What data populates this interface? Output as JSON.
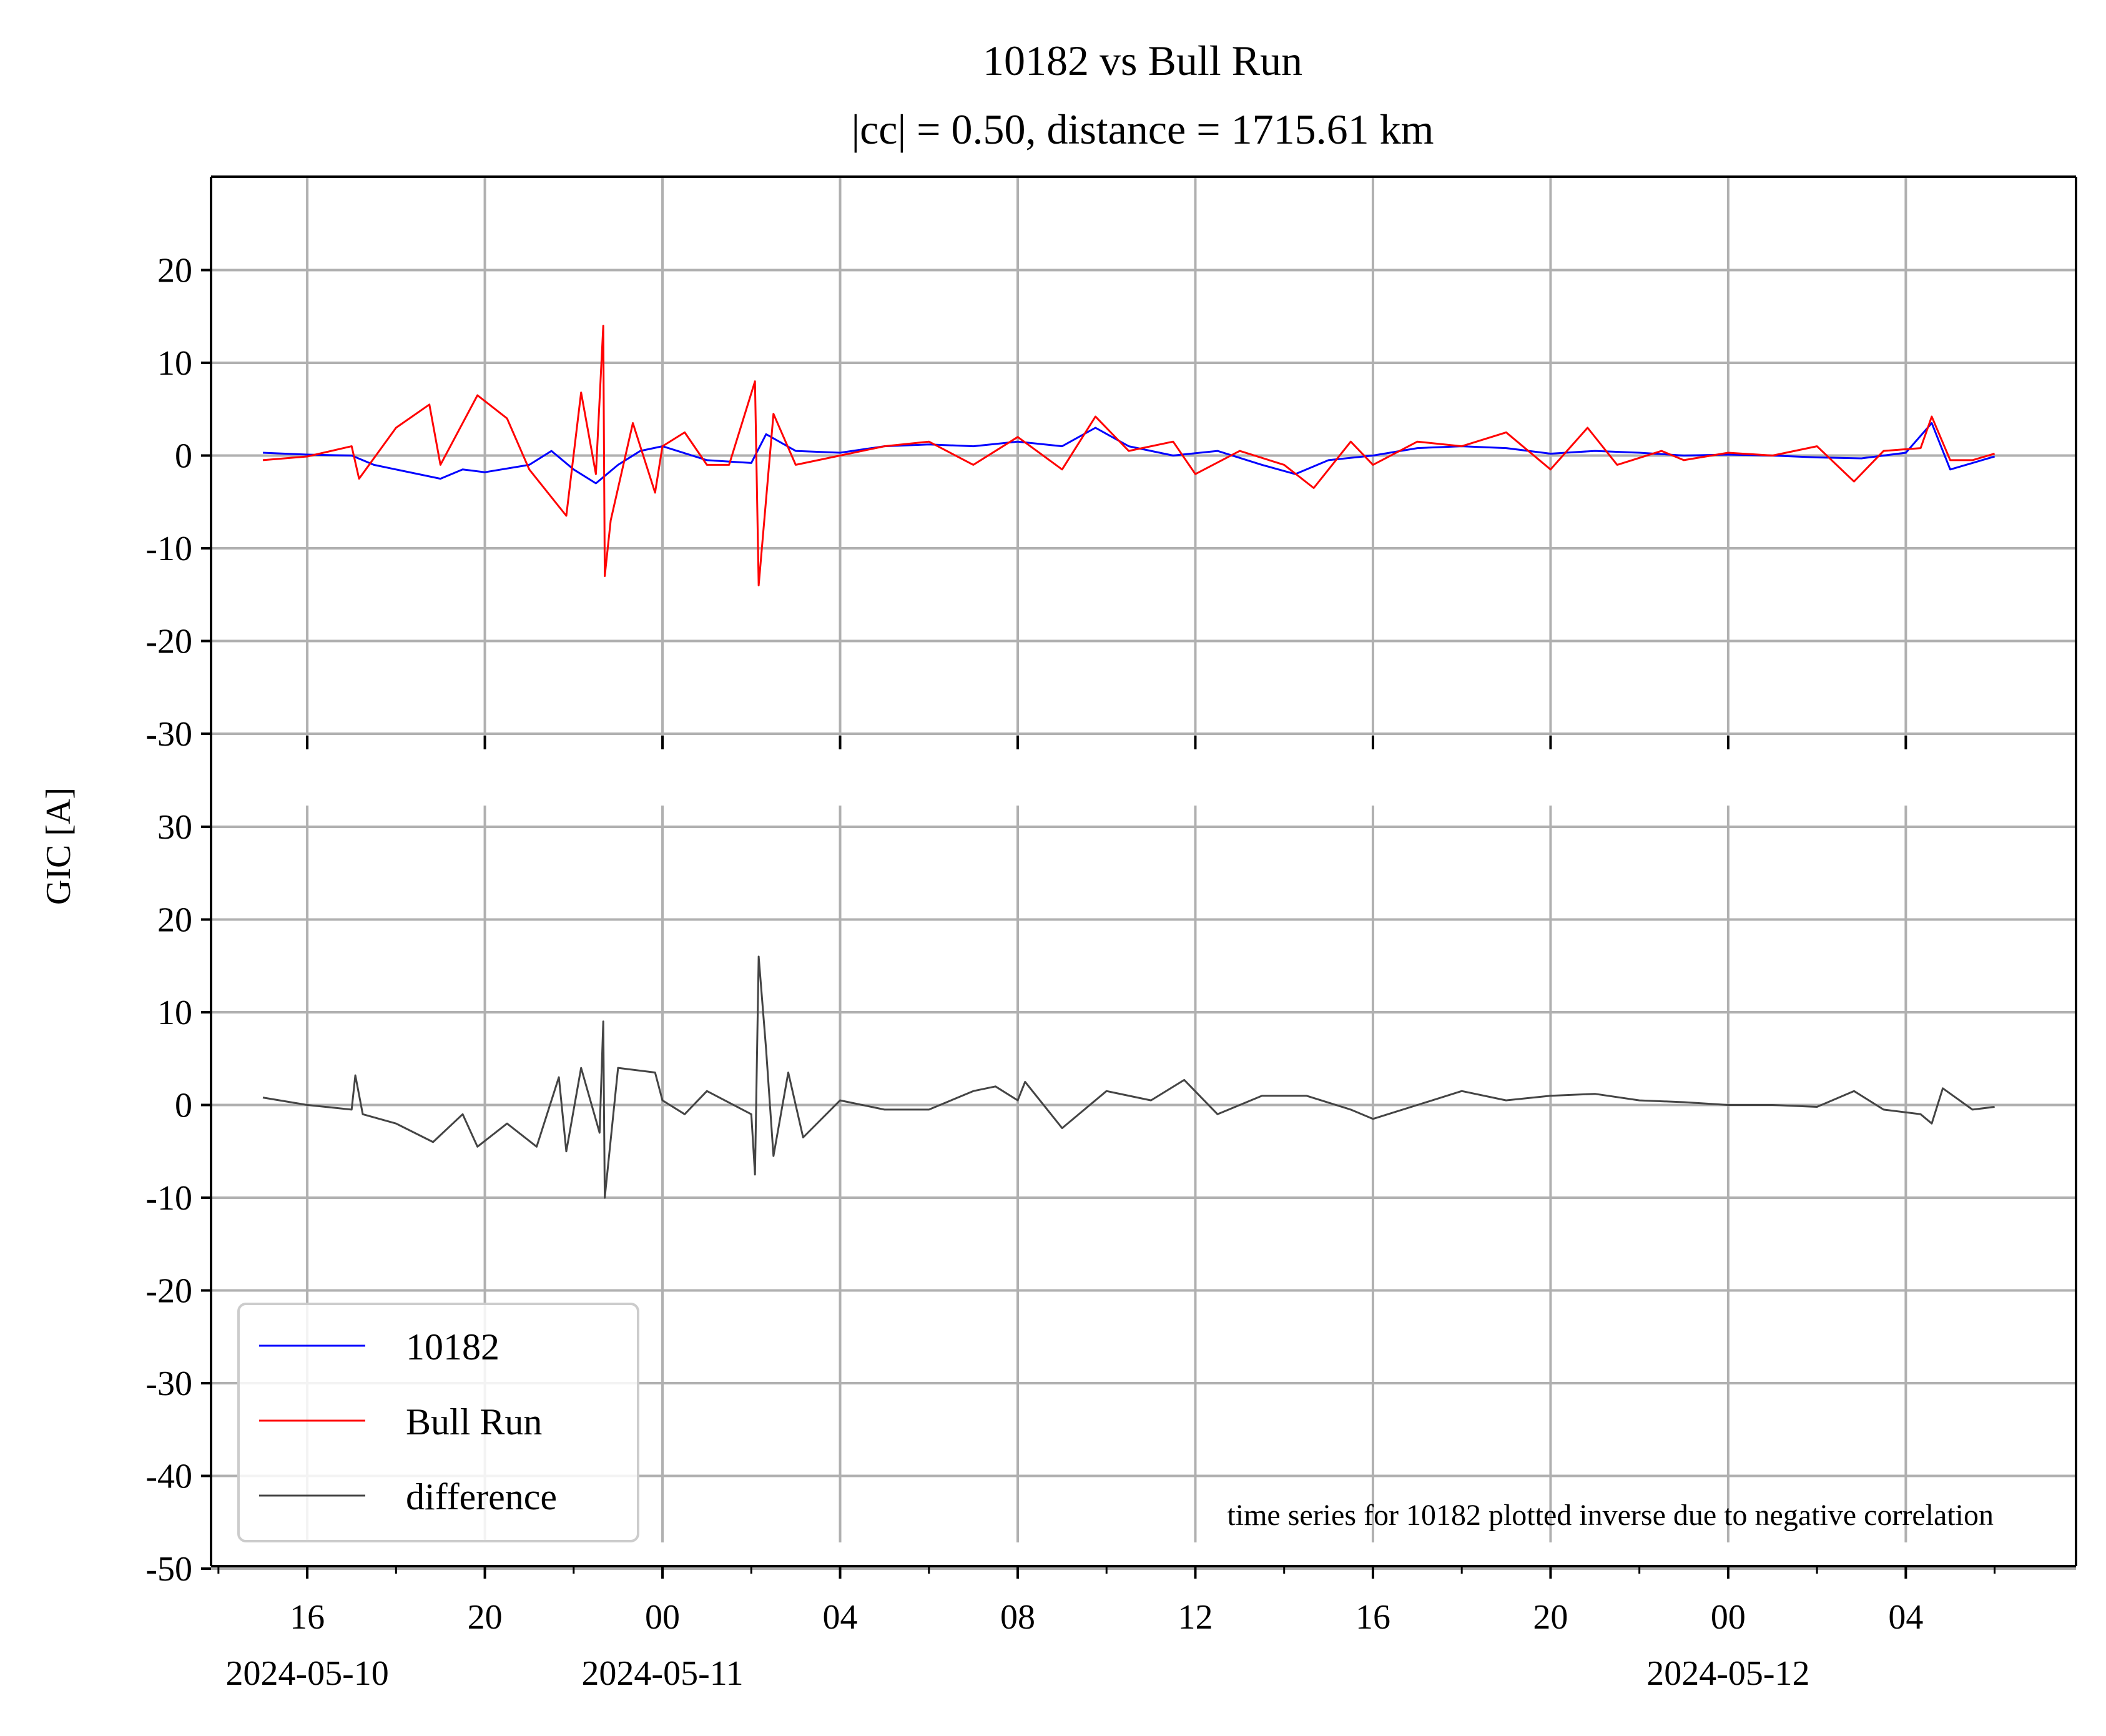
{
  "chart_data": {
    "type": "line",
    "title": "10182 vs Bull Run",
    "subtitle": "|cc| = 0.50, distance = 1715.61 km",
    "ylabel": "GIC [A]",
    "annotation": "time series for 10182 plotted inverse due to negative correlation",
    "grid": true,
    "legend": {
      "placement": "lower-left",
      "entries": [
        {
          "label": "10182",
          "color": "#0000ff"
        },
        {
          "label": "Bull Run",
          "color": "#ff0000"
        },
        {
          "label": "difference",
          "color": "#444444"
        }
      ]
    },
    "x_axis": {
      "range": [
        "2024-05-10T13:50",
        "2024-05-12T07:50"
      ],
      "data_range": [
        "2024-05-10T15:00",
        "2024-05-12T06:00"
      ],
      "major_ticks": [
        {
          "time": "2024-05-10T16:00",
          "label": "16",
          "date": "2024-05-10"
        },
        {
          "time": "2024-05-10T20:00",
          "label": "20",
          "date": ""
        },
        {
          "time": "2024-05-11T00:00",
          "label": "00",
          "date": "2024-05-11"
        },
        {
          "time": "2024-05-11T04:00",
          "label": "04",
          "date": ""
        },
        {
          "time": "2024-05-11T08:00",
          "label": "08",
          "date": ""
        },
        {
          "time": "2024-05-11T12:00",
          "label": "12",
          "date": ""
        },
        {
          "time": "2024-05-11T16:00",
          "label": "16",
          "date": ""
        },
        {
          "time": "2024-05-11T20:00",
          "label": "20",
          "date": ""
        },
        {
          "time": "2024-05-12T00:00",
          "label": "00",
          "date": "2024-05-12"
        },
        {
          "time": "2024-05-12T04:00",
          "label": "04",
          "date": ""
        }
      ]
    },
    "panels": [
      {
        "name": "top",
        "ylim": [
          -30,
          30
        ],
        "yticks": [
          -30,
          -20,
          -10,
          0,
          10,
          20
        ],
        "ytick_labels": [
          "-30",
          "-20",
          "-10",
          "0",
          "10",
          "20"
        ],
        "series": [
          {
            "name": "10182",
            "color": "#0000ff",
            "points": [
              [
                "2024-05-10T15:00",
                0.3
              ],
              [
                "2024-05-10T16:00",
                0.1
              ],
              [
                "2024-05-10T17:00",
                0.0
              ],
              [
                "2024-05-10T17:30",
                -1.0
              ],
              [
                "2024-05-10T18:00",
                -1.5
              ],
              [
                "2024-05-10T19:00",
                -2.5
              ],
              [
                "2024-05-10T19:30",
                -1.5
              ],
              [
                "2024-05-10T20:00",
                -1.8
              ],
              [
                "2024-05-10T21:00",
                -1.0
              ],
              [
                "2024-05-10T21:30",
                0.5
              ],
              [
                "2024-05-10T22:00",
                -1.5
              ],
              [
                "2024-05-10T22:30",
                -3.0
              ],
              [
                "2024-05-10T23:00",
                -1.0
              ],
              [
                "2024-05-10T23:30",
                0.5
              ],
              [
                "2024-05-11T00:00",
                1.0
              ],
              [
                "2024-05-11T01:00",
                -0.5
              ],
              [
                "2024-05-11T02:00",
                -0.8
              ],
              [
                "2024-05-11T02:20",
                2.3
              ],
              [
                "2024-05-11T03:00",
                0.5
              ],
              [
                "2024-05-11T04:00",
                0.3
              ],
              [
                "2024-05-11T05:00",
                1.0
              ],
              [
                "2024-05-11T06:00",
                1.2
              ],
              [
                "2024-05-11T07:00",
                1.0
              ],
              [
                "2024-05-11T08:00",
                1.5
              ],
              [
                "2024-05-11T09:00",
                1.0
              ],
              [
                "2024-05-11T09:45",
                3.0
              ],
              [
                "2024-05-11T10:30",
                1.0
              ],
              [
                "2024-05-11T11:30",
                0.0
              ],
              [
                "2024-05-11T12:30",
                0.5
              ],
              [
                "2024-05-11T13:30",
                -1.0
              ],
              [
                "2024-05-11T14:15",
                -2.0
              ],
              [
                "2024-05-11T15:00",
                -0.5
              ],
              [
                "2024-05-11T16:00",
                0.0
              ],
              [
                "2024-05-11T17:00",
                0.8
              ],
              [
                "2024-05-11T18:00",
                1.0
              ],
              [
                "2024-05-11T19:00",
                0.8
              ],
              [
                "2024-05-11T20:00",
                0.2
              ],
              [
                "2024-05-11T21:00",
                0.5
              ],
              [
                "2024-05-11T22:00",
                0.3
              ],
              [
                "2024-05-11T23:00",
                0.0
              ],
              [
                "2024-05-12T00:00",
                0.1
              ],
              [
                "2024-05-12T01:00",
                0.0
              ],
              [
                "2024-05-12T02:00",
                -0.2
              ],
              [
                "2024-05-12T03:00",
                -0.3
              ],
              [
                "2024-05-12T04:00",
                0.3
              ],
              [
                "2024-05-12T04:35",
                3.5
              ],
              [
                "2024-05-12T05:00",
                -1.5
              ],
              [
                "2024-05-12T05:30",
                -0.8
              ],
              [
                "2024-05-12T06:00",
                -0.1
              ]
            ]
          },
          {
            "name": "Bull Run",
            "color": "#ff0000",
            "points": [
              [
                "2024-05-10T15:00",
                -0.5
              ],
              [
                "2024-05-10T16:00",
                -0.1
              ],
              [
                "2024-05-10T17:00",
                1.0
              ],
              [
                "2024-05-10T17:10",
                -2.5
              ],
              [
                "2024-05-10T18:00",
                3.0
              ],
              [
                "2024-05-10T18:45",
                5.5
              ],
              [
                "2024-05-10T19:00",
                -1.0
              ],
              [
                "2024-05-10T19:50",
                6.5
              ],
              [
                "2024-05-10T20:30",
                4.0
              ],
              [
                "2024-05-10T21:00",
                -1.5
              ],
              [
                "2024-05-10T21:50",
                -6.5
              ],
              [
                "2024-05-10T22:10",
                6.8
              ],
              [
                "2024-05-10T22:30",
                -2.0
              ],
              [
                "2024-05-10T22:40",
                14.0
              ],
              [
                "2024-05-10T22:42",
                -13.0
              ],
              [
                "2024-05-10T22:50",
                -7.0
              ],
              [
                "2024-05-10T23:20",
                3.5
              ],
              [
                "2024-05-10T23:50",
                -4.0
              ],
              [
                "2024-05-11T00:00",
                1.0
              ],
              [
                "2024-05-11T00:30",
                2.5
              ],
              [
                "2024-05-11T01:00",
                -1.0
              ],
              [
                "2024-05-11T01:30",
                -1.0
              ],
              [
                "2024-05-11T02:05",
                8.0
              ],
              [
                "2024-05-11T02:10",
                -14.0
              ],
              [
                "2024-05-11T02:30",
                4.5
              ],
              [
                "2024-05-11T03:00",
                -1.0
              ],
              [
                "2024-05-11T04:00",
                0.0
              ],
              [
                "2024-05-11T05:00",
                1.0
              ],
              [
                "2024-05-11T06:00",
                1.5
              ],
              [
                "2024-05-11T07:00",
                -1.0
              ],
              [
                "2024-05-11T08:00",
                2.0
              ],
              [
                "2024-05-11T09:00",
                -1.5
              ],
              [
                "2024-05-11T09:45",
                4.2
              ],
              [
                "2024-05-11T10:30",
                0.5
              ],
              [
                "2024-05-11T11:30",
                1.5
              ],
              [
                "2024-05-11T12:00",
                -2.0
              ],
              [
                "2024-05-11T13:00",
                0.5
              ],
              [
                "2024-05-11T14:00",
                -1.0
              ],
              [
                "2024-05-11T14:40",
                -3.5
              ],
              [
                "2024-05-11T15:30",
                1.5
              ],
              [
                "2024-05-11T16:00",
                -1.0
              ],
              [
                "2024-05-11T17:00",
                1.5
              ],
              [
                "2024-05-11T18:00",
                1.0
              ],
              [
                "2024-05-11T19:00",
                2.5
              ],
              [
                "2024-05-11T20:00",
                -1.5
              ],
              [
                "2024-05-11T20:50",
                3.0
              ],
              [
                "2024-05-11T21:30",
                -1.0
              ],
              [
                "2024-05-11T22:30",
                0.5
              ],
              [
                "2024-05-11T23:00",
                -0.5
              ],
              [
                "2024-05-12T00:00",
                0.3
              ],
              [
                "2024-05-12T01:00",
                0.0
              ],
              [
                "2024-05-12T02:00",
                1.0
              ],
              [
                "2024-05-12T02:50",
                -2.8
              ],
              [
                "2024-05-12T03:30",
                0.5
              ],
              [
                "2024-05-12T04:20",
                0.8
              ],
              [
                "2024-05-12T04:35",
                4.2
              ],
              [
                "2024-05-12T05:00",
                -0.5
              ],
              [
                "2024-05-12T05:30",
                -0.5
              ],
              [
                "2024-05-12T06:00",
                0.2
              ]
            ]
          }
        ]
      },
      {
        "name": "bottom",
        "ylim": [
          -50,
          32
        ],
        "yticks": [
          -50,
          -40,
          -30,
          -20,
          -10,
          0,
          10,
          20,
          30
        ],
        "ytick_labels": [
          "-50",
          "-40",
          "-30",
          "-20",
          "-10",
          "0",
          "10",
          "20",
          "30"
        ],
        "series": [
          {
            "name": "difference",
            "color": "#444444",
            "points": [
              [
                "2024-05-10T15:00",
                0.8
              ],
              [
                "2024-05-10T16:00",
                0.0
              ],
              [
                "2024-05-10T17:00",
                -0.5
              ],
              [
                "2024-05-10T17:05",
                3.2
              ],
              [
                "2024-05-10T17:15",
                -1.0
              ],
              [
                "2024-05-10T18:00",
                -2.0
              ],
              [
                "2024-05-10T18:50",
                -4.0
              ],
              [
                "2024-05-10T19:30",
                -1.0
              ],
              [
                "2024-05-10T19:50",
                -4.5
              ],
              [
                "2024-05-10T20:30",
                -2.0
              ],
              [
                "2024-05-10T21:10",
                -4.5
              ],
              [
                "2024-05-10T21:40",
                3.0
              ],
              [
                "2024-05-10T21:50",
                -5.0
              ],
              [
                "2024-05-10T22:10",
                4.0
              ],
              [
                "2024-05-10T22:35",
                -3.0
              ],
              [
                "2024-05-10T22:40",
                9.0
              ],
              [
                "2024-05-10T22:42",
                -10.0
              ],
              [
                "2024-05-10T23:00",
                4.0
              ],
              [
                "2024-05-10T23:50",
                3.5
              ],
              [
                "2024-05-11T00:00",
                0.5
              ],
              [
                "2024-05-11T00:30",
                -1.0
              ],
              [
                "2024-05-11T01:00",
                1.5
              ],
              [
                "2024-05-11T02:00",
                -1.0
              ],
              [
                "2024-05-11T02:05",
                -7.5
              ],
              [
                "2024-05-11T02:10",
                16.0
              ],
              [
                "2024-05-11T02:20",
                6.0
              ],
              [
                "2024-05-11T02:30",
                -5.5
              ],
              [
                "2024-05-11T02:50",
                3.5
              ],
              [
                "2024-05-11T03:10",
                -3.5
              ],
              [
                "2024-05-11T04:00",
                0.5
              ],
              [
                "2024-05-11T05:00",
                -0.5
              ],
              [
                "2024-05-11T06:00",
                -0.5
              ],
              [
                "2024-05-11T07:00",
                1.5
              ],
              [
                "2024-05-11T07:30",
                2.0
              ],
              [
                "2024-05-11T08:00",
                0.5
              ],
              [
                "2024-05-11T08:10",
                2.5
              ],
              [
                "2024-05-11T09:00",
                -2.5
              ],
              [
                "2024-05-11T10:00",
                1.5
              ],
              [
                "2024-05-11T11:00",
                0.5
              ],
              [
                "2024-05-11T11:45",
                2.7
              ],
              [
                "2024-05-11T12:30",
                -1.0
              ],
              [
                "2024-05-11T13:30",
                1.0
              ],
              [
                "2024-05-11T14:30",
                1.0
              ],
              [
                "2024-05-11T15:30",
                -0.5
              ],
              [
                "2024-05-11T16:00",
                -1.5
              ],
              [
                "2024-05-11T17:00",
                0.0
              ],
              [
                "2024-05-11T18:00",
                1.5
              ],
              [
                "2024-05-11T19:00",
                0.5
              ],
              [
                "2024-05-11T20:00",
                1.0
              ],
              [
                "2024-05-11T21:00",
                1.2
              ],
              [
                "2024-05-11T22:00",
                0.5
              ],
              [
                "2024-05-11T23:00",
                0.3
              ],
              [
                "2024-05-12T00:00",
                0.0
              ],
              [
                "2024-05-12T01:00",
                0.0
              ],
              [
                "2024-05-12T02:00",
                -0.2
              ],
              [
                "2024-05-12T02:50",
                1.5
              ],
              [
                "2024-05-12T03:30",
                -0.5
              ],
              [
                "2024-05-12T04:20",
                -1.0
              ],
              [
                "2024-05-12T04:35",
                -2.0
              ],
              [
                "2024-05-12T04:50",
                1.8
              ],
              [
                "2024-05-12T05:30",
                -0.5
              ],
              [
                "2024-05-12T06:00",
                -0.2
              ]
            ]
          }
        ]
      }
    ]
  }
}
